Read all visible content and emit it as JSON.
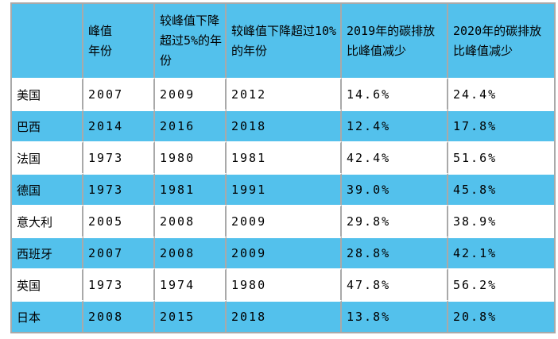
{
  "chart_data": {
    "type": "table",
    "title": "",
    "columns": [
      "",
      "峰值\n年份",
      "较峰值下降超过5%的年份",
      "较峰值下降超过10%的年份",
      "2019年的碳排放比峰值减少",
      "2020年的碳排放比峰值减少"
    ],
    "rows": [
      [
        "美国",
        "2007",
        "2009",
        "2012",
        "14.6%",
        "24.4%"
      ],
      [
        "巴西",
        "2014",
        "2016",
        "2018",
        "12.4%",
        "17.8%"
      ],
      [
        "法国",
        "1973",
        "1980",
        "1981",
        "42.4%",
        "51.6%"
      ],
      [
        "德国",
        "1973",
        "1981",
        "1991",
        "39.0%",
        "45.8%"
      ],
      [
        "意大利",
        "2005",
        "2008",
        "2009",
        "29.8%",
        "38.9%"
      ],
      [
        "西班牙",
        "2007",
        "2008",
        "2009",
        "28.8%",
        "42.1%"
      ],
      [
        "英国",
        "1973",
        "1974",
        "1980",
        "47.8%",
        "56.2%"
      ],
      [
        "日本",
        "2008",
        "2015",
        "2018",
        "13.8%",
        "20.8%"
      ]
    ],
    "striped_row_indices": [
      1,
      3,
      5,
      7
    ],
    "colors": {
      "fill_blue": "#53C1EC",
      "border_gray": "#A9A9A9",
      "row_white": "#FFFFFF",
      "text_black": "#000000"
    },
    "layout": {
      "header_background": "blue",
      "stripe_pattern": "every second data row blue",
      "grid": "vertical gray lines, white horizontal separators"
    }
  }
}
